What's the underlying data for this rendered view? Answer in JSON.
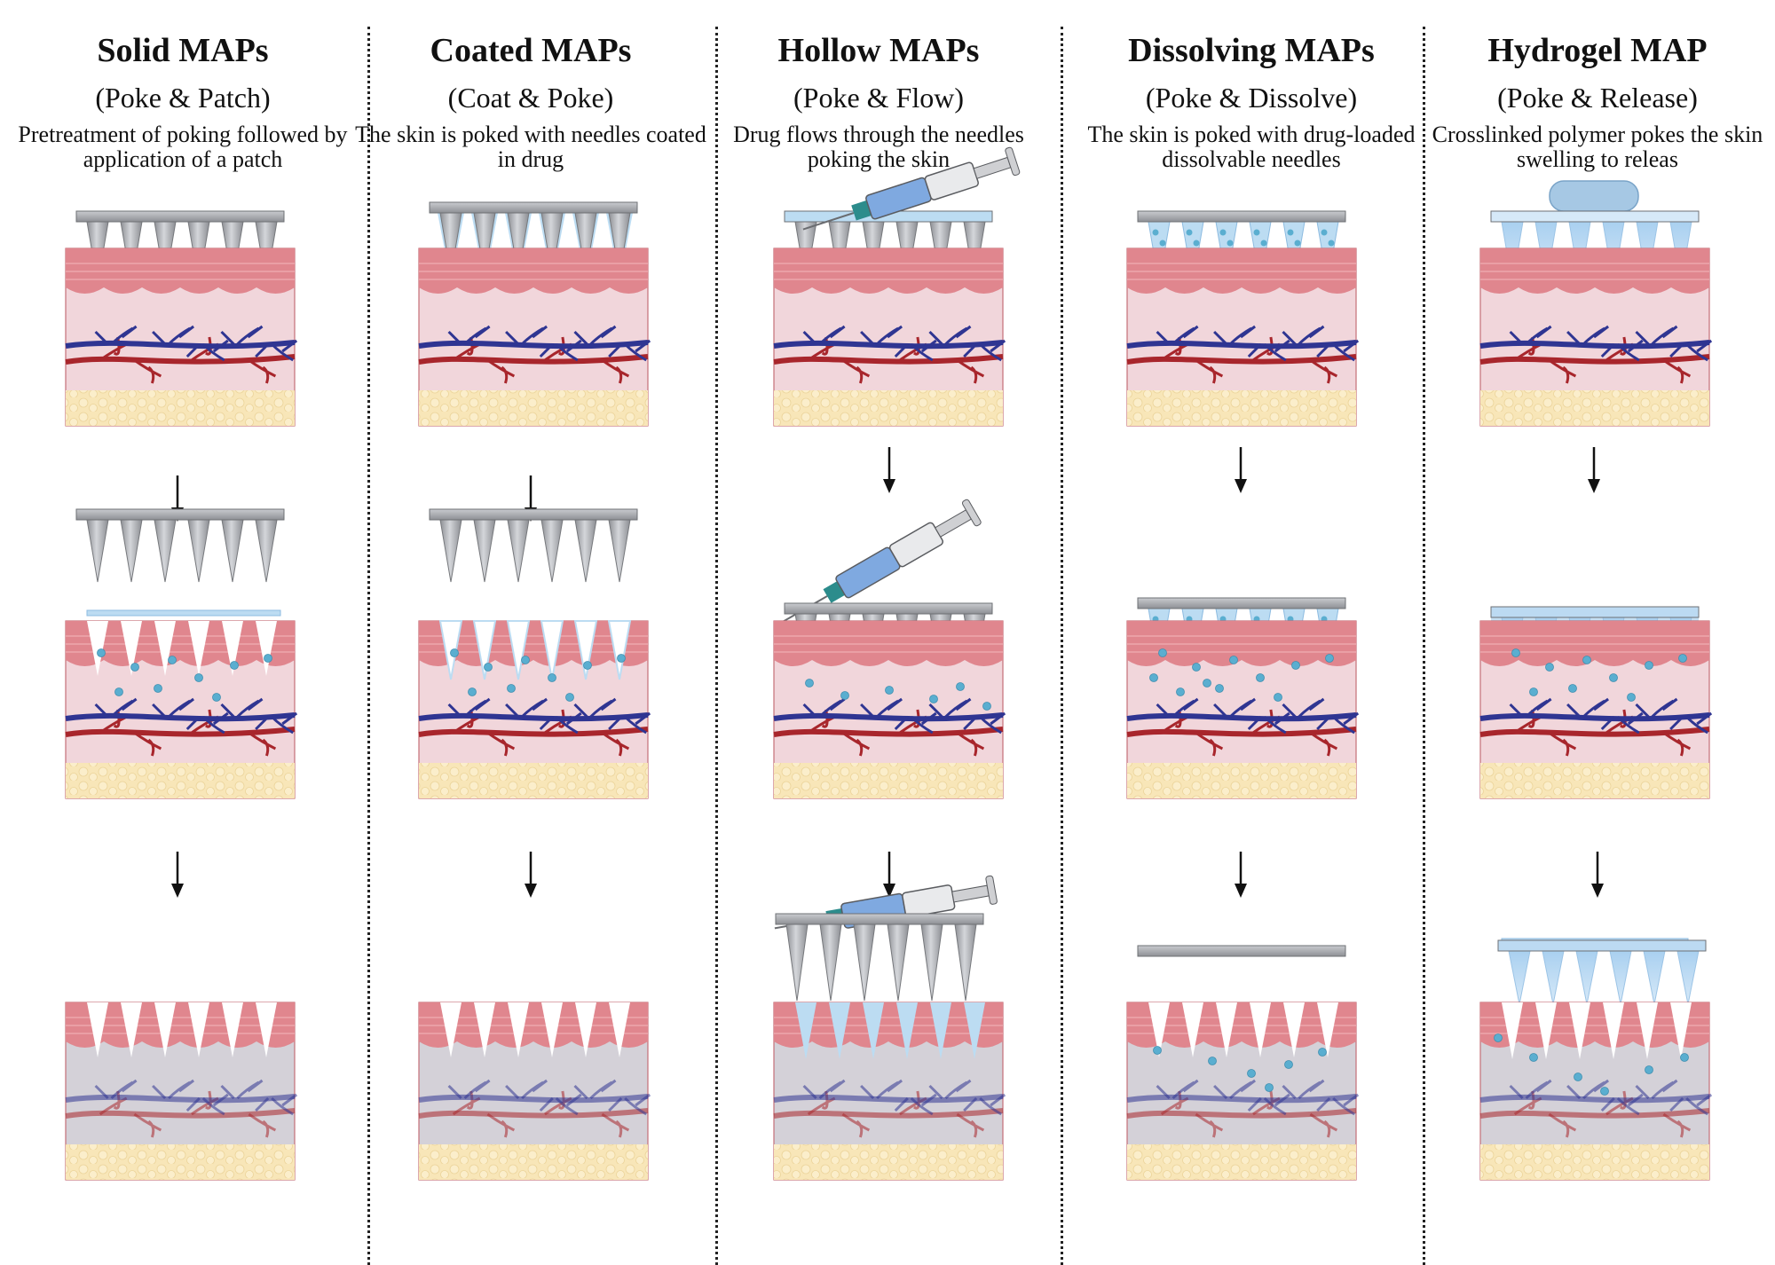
{
  "columns": [
    {
      "key": "solid",
      "title": "Solid MAPs",
      "subtitle": "(Poke & Patch)",
      "description": "Pretreatment of poking followed by application of a patch"
    },
    {
      "key": "coated",
      "title": "Coated MAPs",
      "subtitle": "(Coat & Poke)",
      "description": "The skin is poked with needles coated in drug"
    },
    {
      "key": "hollow",
      "title": "Hollow MAPs",
      "subtitle": "(Poke & Flow)",
      "description": "Drug flows through the needles poking the skin"
    },
    {
      "key": "dissolving",
      "title": "Dissolving MAPs",
      "subtitle": "(Poke & Dissolve)",
      "description": "The skin is poked with drug-loaded dissolvable needles"
    },
    {
      "key": "hydrogel",
      "title": "Hydrogel MAP",
      "subtitle": "(Poke & Release)",
      "description": "Crosslinked polymer pokes the skin swelling to releas"
    }
  ],
  "colors": {
    "needle": "#a8aaae",
    "plate": "#9a9ca0",
    "drug": "#bcdcf2",
    "drug_dot": "#5aaed0",
    "epidermis": "#e0868e",
    "dermis": "#f1d6db",
    "dermis_after": "#d4d1d8",
    "fat": "#f8e6b8",
    "vein": "#2f3592",
    "artery": "#a8262c"
  }
}
